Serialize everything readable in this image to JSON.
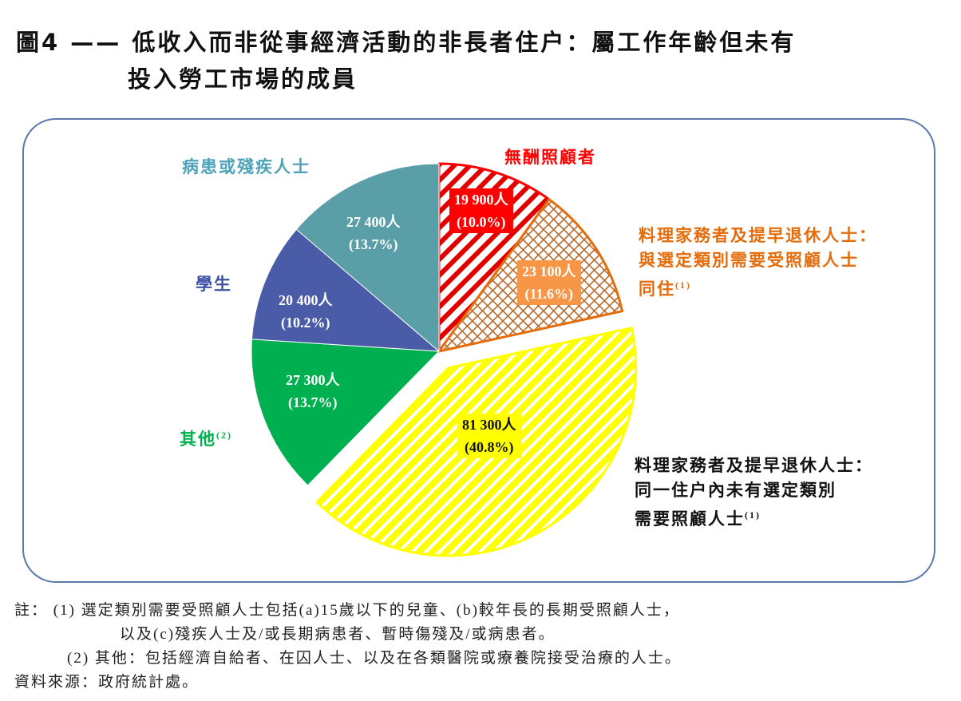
{
  "title_line1": "圖4 —— 低收入而非從事經濟活動的非長者住户：屬工作年齡但未有",
  "title_line2": "投入勞工市場的成員",
  "chart_data": {
    "type": "pie",
    "title": "低收入而非從事經濟活動的非長者住户：屬工作年齡但未有投入勞工市場的成員",
    "slices": [
      {
        "label": "無酬照顧者",
        "value": 19900,
        "value_label": "19 900人",
        "percent": "(10.0%)",
        "color": "#ff0000",
        "pattern": "diagonal-hatch",
        "exploded": false
      },
      {
        "label": "料理家務者及提早退休人士：與選定類別需要受照顧人士同住",
        "label_lines": [
          "料理家務者及提早退休人士：",
          "與選定類別需要受照顧人士",
          "同住"
        ],
        "note": "(1)",
        "value": 23100,
        "value_label": "23 100人",
        "percent": "(11.6%)",
        "color": "#e46c0a",
        "pattern": "crosshatch",
        "exploded": false
      },
      {
        "label": "料理家務者及提早退休人士：同一住户內未有選定類別需要照顧人士",
        "label_lines": [
          "料理家務者及提早退休人士：",
          "同一住户內未有選定類別",
          "需要照顧人士"
        ],
        "note": "(1)",
        "value": 81300,
        "value_label": "81 300人",
        "percent": "(40.8%)",
        "color": "#ffff00",
        "pattern": "diagonal-hatch",
        "exploded": true
      },
      {
        "label": "其他",
        "note": "(2)",
        "value": 27300,
        "value_label": "27 300人",
        "percent": "(13.7%)",
        "color": "#00b050",
        "pattern": "solid",
        "exploded": false
      },
      {
        "label": "學生",
        "value": 20400,
        "value_label": "20 400人",
        "percent": "(10.2%)",
        "color": "#4a5ca8",
        "pattern": "solid",
        "exploded": false
      },
      {
        "label": "病患或殘疾人士",
        "value": 27400,
        "value_label": "27 400人",
        "percent": "(13.7%)",
        "color": "#5a9ea8",
        "pattern": "solid",
        "exploded": false
      }
    ],
    "start": "12 o'clock, clockwise"
  },
  "notes": {
    "n1a": "註： (1)  選定類別需要受照顧人士包括(a)15歲以下的兒童、(b)較年長的長期受照顧人士，",
    "n1b": "以及(c)殘疾人士及/或長期病患者、暫時傷殘及/或病患者。",
    "n2": "(2)  其他：包括經濟自給者、在囚人士、以及在各類醫院或療養院接受治療的人士。",
    "source": "資料來源：政府統計處。"
  }
}
